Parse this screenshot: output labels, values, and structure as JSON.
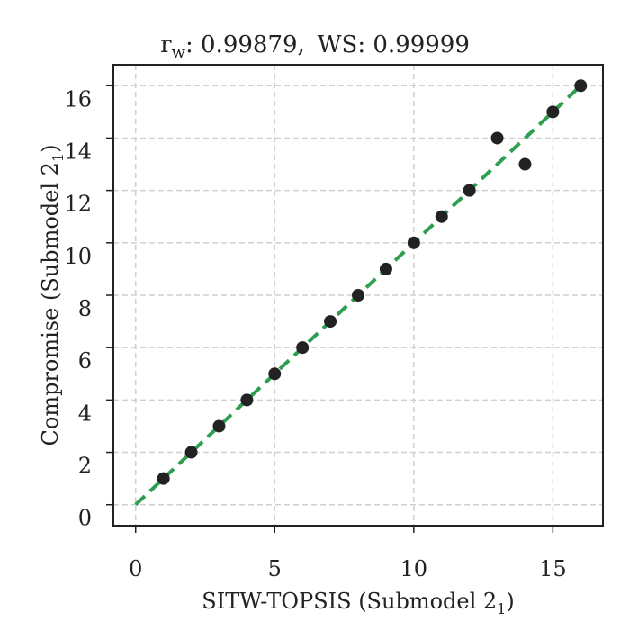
{
  "chart_data": {
    "type": "scatter",
    "title": {
      "r_label": "r",
      "r_sub": "w",
      "r_value": ": 0.99879,",
      "ws_text": "WS: 0.99999"
    },
    "xlabel": {
      "text": "SITW-TOPSIS (Submodel 2",
      "sub": "1",
      "close": ")"
    },
    "ylabel": {
      "text": "Compromise (Submodel 2",
      "sub": "1",
      "close": ")"
    },
    "xlim": [
      -0.8,
      16.8
    ],
    "ylim": [
      -0.8,
      16.8
    ],
    "x_ticks": [
      0,
      5,
      10,
      15
    ],
    "x_tick_labels": [
      "0",
      "5",
      "10",
      "15"
    ],
    "y_ticks": [
      0,
      2,
      4,
      6,
      8,
      10,
      12,
      14,
      16
    ],
    "y_tick_labels": [
      "0",
      "2",
      "4",
      "6",
      "8",
      "10",
      "12",
      "14",
      "16"
    ],
    "grid": true,
    "points": [
      {
        "x": 1,
        "y": 1
      },
      {
        "x": 2,
        "y": 2
      },
      {
        "x": 3,
        "y": 3
      },
      {
        "x": 4,
        "y": 4
      },
      {
        "x": 5,
        "y": 5
      },
      {
        "x": 6,
        "y": 6
      },
      {
        "x": 7,
        "y": 7
      },
      {
        "x": 8,
        "y": 8
      },
      {
        "x": 9,
        "y": 9
      },
      {
        "x": 10,
        "y": 10
      },
      {
        "x": 11,
        "y": 11
      },
      {
        "x": 12,
        "y": 12
      },
      {
        "x": 13,
        "y": 14
      },
      {
        "x": 14,
        "y": 13
      },
      {
        "x": 15,
        "y": 15
      },
      {
        "x": 16,
        "y": 16
      }
    ],
    "fit_line": {
      "x": [
        0,
        16
      ],
      "y": [
        0,
        16
      ],
      "style": "dashed"
    },
    "colors": {
      "points": "#222222",
      "fit_line": "#2e9e4f",
      "grid": "#d0d0d0",
      "axes": "#222222"
    }
  }
}
